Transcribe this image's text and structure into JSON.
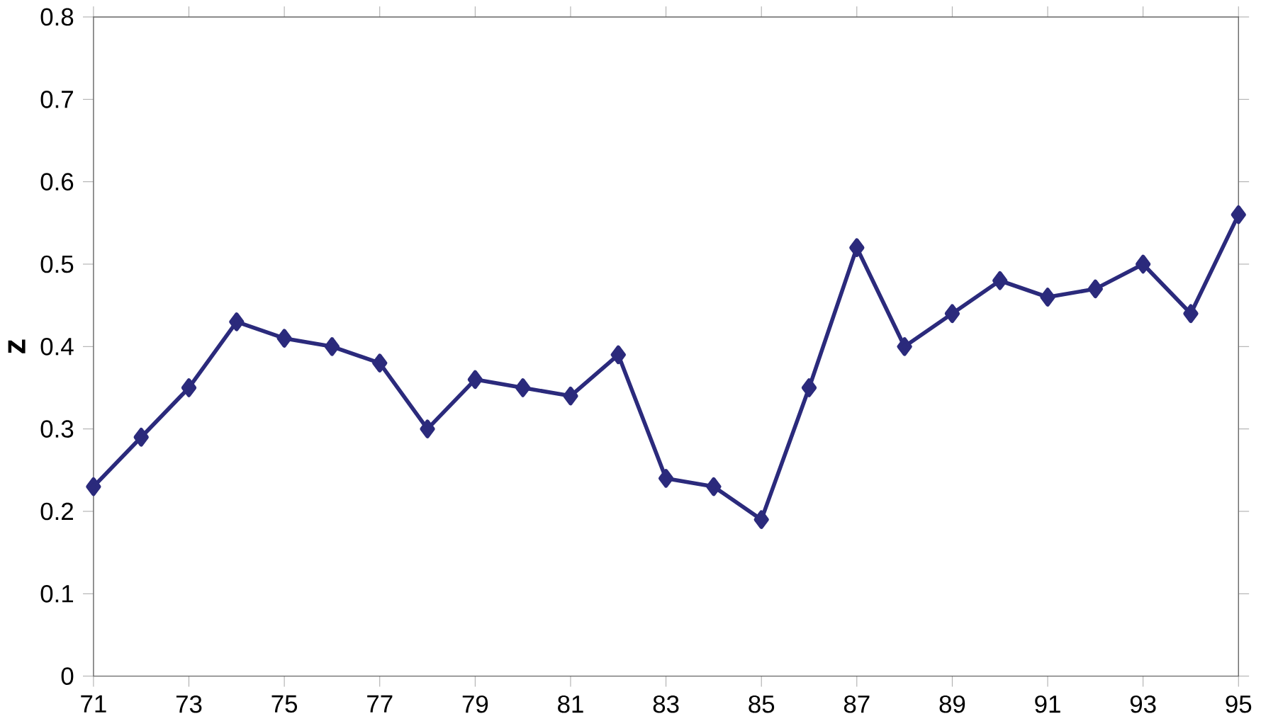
{
  "chart_data": {
    "type": "line",
    "ylabel": "z",
    "x": [
      71,
      72,
      73,
      74,
      75,
      76,
      77,
      78,
      79,
      80,
      81,
      82,
      83,
      84,
      85,
      86,
      87,
      88,
      89,
      90,
      91,
      92,
      93,
      94,
      95
    ],
    "series": [
      {
        "color": "#2b2a7c",
        "values": [
          0.23,
          0.29,
          0.35,
          0.43,
          0.41,
          0.4,
          0.38,
          0.3,
          0.36,
          0.35,
          0.34,
          0.39,
          0.24,
          0.23,
          0.19,
          0.35,
          0.52,
          0.4,
          0.44,
          0.48,
          0.46,
          0.47,
          0.5,
          0.44,
          0.56
        ]
      }
    ],
    "xlim": [
      71,
      95
    ],
    "xticks": [
      71,
      73,
      75,
      77,
      79,
      81,
      83,
      85,
      87,
      89,
      91,
      93,
      95
    ],
    "ylim": [
      0,
      0.8
    ],
    "yticks": [
      0,
      0.1,
      0.2,
      0.3,
      0.4,
      0.5,
      0.6,
      0.7,
      0.8
    ],
    "marker": "diamond",
    "line_style": "solid"
  }
}
